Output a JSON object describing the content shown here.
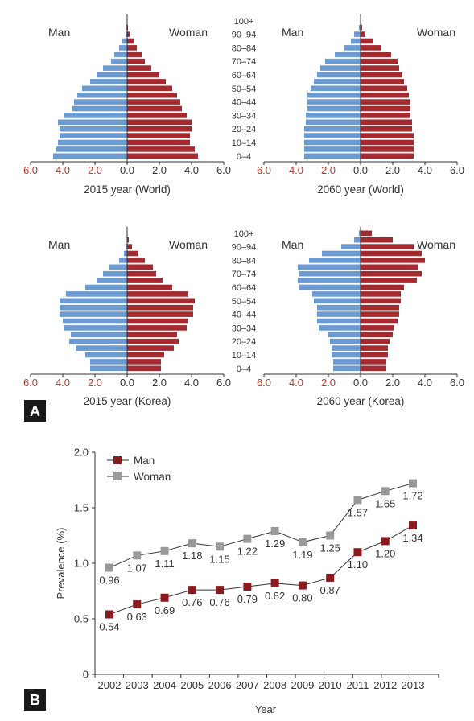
{
  "panels": {
    "a_label": "A",
    "b_label": "B"
  },
  "colors": {
    "man": "#6b9bd1",
    "woman": "#a52a2f",
    "line_man": "#8b1a1e",
    "line_woman": "#999999",
    "neg_tick": "#c0392b",
    "axis": "#333333"
  },
  "pyramid_common": {
    "age_groups": [
      "0–4",
      "5–9",
      "10–14",
      "15–19",
      "20–24",
      "25–29",
      "30–34",
      "35–39",
      "40–44",
      "45–49",
      "50–54",
      "55–59",
      "60–64",
      "65–69",
      "70–74",
      "75–79",
      "80–84",
      "85–89",
      "90–94",
      "95–99",
      "100+"
    ],
    "age_labels_shown": [
      "0–4",
      "10–14",
      "20–24",
      "30–34",
      "40–44",
      "50–54",
      "60–64",
      "70–74",
      "80–84",
      "90–94",
      "100+"
    ],
    "left_label": "Man",
    "right_label": "Woman",
    "left_ticks": [
      "6.0",
      "4.0",
      "2.0"
    ],
    "right_ticks": [
      "0.0",
      "2.0",
      "4.0",
      "6.0"
    ]
  },
  "chart_data": [
    {
      "type": "bar",
      "subtype": "population-pyramid",
      "title": "2015 year (World)",
      "xlim": [
        -6,
        6
      ],
      "categories": [
        "0–4",
        "5–9",
        "10–14",
        "15–19",
        "20–24",
        "25–29",
        "30–34",
        "35–39",
        "40–44",
        "45–49",
        "50–54",
        "55–59",
        "60–64",
        "65–69",
        "70–74",
        "75–79",
        "80–84",
        "85–89",
        "90–94",
        "95–99",
        "100+"
      ],
      "series": [
        {
          "name": "Man",
          "values": [
            4.6,
            4.4,
            4.3,
            4.2,
            4.2,
            4.3,
            3.9,
            3.4,
            3.3,
            3.1,
            2.8,
            2.3,
            1.9,
            1.5,
            1.0,
            0.8,
            0.5,
            0.3,
            0.1,
            0.05,
            0
          ]
        },
        {
          "name": "Woman",
          "values": [
            4.4,
            4.2,
            3.9,
            3.9,
            4.0,
            4.0,
            3.7,
            3.4,
            3.3,
            3.1,
            2.8,
            2.4,
            2.0,
            1.5,
            1.1,
            0.9,
            0.6,
            0.4,
            0.15,
            0.05,
            0
          ]
        }
      ]
    },
    {
      "type": "bar",
      "subtype": "population-pyramid",
      "title": "2060 year (World)",
      "xlim": [
        -6,
        6
      ],
      "categories": [
        "0–4",
        "5–9",
        "10–14",
        "15–19",
        "20–24",
        "25–29",
        "30–34",
        "35–39",
        "40–44",
        "45–49",
        "50–54",
        "55–59",
        "60–64",
        "65–69",
        "70–74",
        "75–79",
        "80–84",
        "85–89",
        "90–94",
        "95–99",
        "100+"
      ],
      "series": [
        {
          "name": "Man",
          "values": [
            3.5,
            3.5,
            3.5,
            3.5,
            3.5,
            3.4,
            3.4,
            3.3,
            3.3,
            3.3,
            3.1,
            2.9,
            2.7,
            2.5,
            2.2,
            1.6,
            1.0,
            0.6,
            0.4,
            0.1,
            0
          ]
        },
        {
          "name": "Woman",
          "values": [
            3.3,
            3.3,
            3.3,
            3.3,
            3.2,
            3.2,
            3.1,
            3.1,
            3.1,
            3.0,
            2.9,
            2.7,
            2.6,
            2.4,
            2.3,
            1.9,
            1.3,
            0.8,
            0.3,
            0.1,
            0
          ]
        }
      ]
    },
    {
      "type": "bar",
      "subtype": "population-pyramid",
      "title": "2015 year (Korea)",
      "xlim": [
        -6,
        6
      ],
      "categories": [
        "0–4",
        "5–9",
        "10–14",
        "15–19",
        "20–24",
        "25–29",
        "30–34",
        "35–39",
        "40–44",
        "45–49",
        "50–54",
        "55–59",
        "60–64",
        "65–69",
        "70–74",
        "75–79",
        "80–84",
        "85–89",
        "90–94",
        "95–99",
        "100+"
      ],
      "series": [
        {
          "name": "Man",
          "values": [
            2.3,
            2.3,
            2.6,
            3.2,
            3.6,
            3.5,
            3.9,
            4.0,
            4.2,
            4.2,
            4.2,
            3.8,
            2.6,
            1.9,
            1.5,
            1.1,
            0.5,
            0.2,
            0.1,
            0,
            0
          ]
        },
        {
          "name": "Woman",
          "values": [
            2.1,
            2.1,
            2.3,
            2.9,
            3.2,
            3.1,
            3.7,
            3.8,
            4.1,
            4.1,
            4.2,
            3.8,
            2.8,
            2.2,
            1.8,
            1.6,
            1.1,
            0.7,
            0.3,
            0.1,
            0
          ]
        }
      ]
    },
    {
      "type": "bar",
      "subtype": "population-pyramid",
      "title": "2060 year (Korea)",
      "xlim": [
        -6,
        6
      ],
      "categories": [
        "0–4",
        "5–9",
        "10–14",
        "15–19",
        "20–24",
        "25–29",
        "30–34",
        "35–39",
        "40–44",
        "45–49",
        "50–54",
        "55–59",
        "60–64",
        "65–69",
        "70–74",
        "75–79",
        "80–84",
        "85–89",
        "90–94",
        "95–99",
        "100+"
      ],
      "series": [
        {
          "name": "Man",
          "values": [
            1.7,
            1.7,
            1.8,
            1.8,
            1.9,
            2.0,
            2.6,
            2.7,
            2.7,
            2.7,
            2.9,
            3.0,
            3.8,
            3.9,
            3.8,
            3.9,
            3.2,
            2.4,
            1.2,
            0.4,
            0.1
          ]
        },
        {
          "name": "Woman",
          "values": [
            1.6,
            1.6,
            1.7,
            1.7,
            1.8,
            2.0,
            2.1,
            2.3,
            2.4,
            2.4,
            2.5,
            2.5,
            2.7,
            3.5,
            3.8,
            3.6,
            4.0,
            3.8,
            3.3,
            2.0,
            0.7
          ]
        }
      ]
    },
    {
      "type": "line",
      "title": "",
      "xlabel": "Year",
      "ylabel": "Prevalence (%)",
      "ylim": [
        0,
        2.0
      ],
      "yticks": [
        "0",
        "0.5",
        "1.0",
        "1.5",
        "2.0"
      ],
      "categories": [
        "2002",
        "2003",
        "2004",
        "2005",
        "2006",
        "2007",
        "2008",
        "2009",
        "2010",
        "2011",
        "2012",
        "2013"
      ],
      "legend": "top-left",
      "series": [
        {
          "name": "Man",
          "values": [
            0.54,
            0.63,
            0.69,
            0.76,
            0.76,
            0.79,
            0.82,
            0.8,
            0.87,
            1.1,
            1.2,
            1.34
          ],
          "labels": [
            "0.54",
            "0.63",
            "0.69",
            "0.76",
            "0.76",
            "0.79",
            "0.82",
            "0.80",
            "0.87",
            "1.10",
            "1.20",
            "1.34"
          ]
        },
        {
          "name": "Woman",
          "values": [
            0.96,
            1.07,
            1.11,
            1.18,
            1.15,
            1.22,
            1.29,
            1.19,
            1.25,
            1.57,
            1.65,
            1.72
          ],
          "labels": [
            "0.96",
            "1.07",
            "1.11",
            "1.18",
            "1.15",
            "1.22",
            "1.29",
            "1.19",
            "1.25",
            "1.57",
            "1.65",
            "1.72"
          ]
        }
      ]
    }
  ]
}
